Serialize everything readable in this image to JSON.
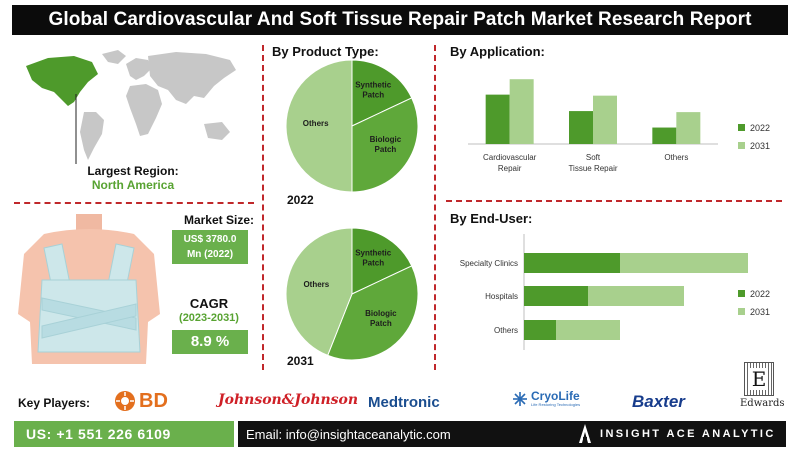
{
  "title": "Global Cardiovascular And Soft Tissue Repair Patch Market Research Report",
  "region": {
    "label": "Largest Region:",
    "value": "North America"
  },
  "market_size": {
    "label": "Market Size:",
    "value_line1": "US$ 3780.0",
    "value_line2": "Mn (2022)"
  },
  "cagr": {
    "label": "CAGR",
    "period": "(2023-2031)",
    "value": "8.9 %"
  },
  "product_type": {
    "heading": "By Product Type:",
    "year_top": "2022",
    "year_bottom": "2031"
  },
  "application": {
    "heading": "By Application:"
  },
  "end_user": {
    "heading": "By End-User:"
  },
  "key_players": {
    "label": "Key Players:",
    "logos": [
      "BD",
      "Johnson&Johnson",
      "Medtronic",
      "CryoLife",
      "Baxter",
      "Edwards"
    ],
    "cryolife_tag": "Life Restoring Technologies",
    "edwards_mark": "E"
  },
  "footer": {
    "phone": "US: +1 551 226 6109",
    "email": "Email: info@insightaceanalytic.com",
    "brand": "INSIGHT ACE ANALYTIC"
  },
  "colors": {
    "dark_green": "#4e9a2b",
    "light_green": "#a8d08d",
    "accent_red": "#c0282b",
    "brand_green": "#6ab04c"
  },
  "chart_data": [
    {
      "type": "pie",
      "title": "2022",
      "labels": [
        "Synthetic Patch",
        "Biologic Patch",
        "Others"
      ],
      "values": [
        18,
        32,
        50
      ]
    },
    {
      "type": "pie",
      "title": "2031",
      "labels": [
        "Synthetic Patch",
        "Biologic Patch",
        "Others"
      ],
      "values": [
        18,
        38,
        44
      ]
    },
    {
      "type": "bar",
      "orientation": "vertical",
      "categories": [
        "Cardiovascular Repair",
        "Soft Tissue Repair",
        "Others"
      ],
      "series": [
        {
          "name": "2022",
          "values": [
            4.8,
            3.2,
            1.6
          ]
        },
        {
          "name": "2031",
          "values": [
            6.3,
            4.7,
            3.1
          ]
        }
      ],
      "ylim": [
        0,
        7
      ]
    },
    {
      "type": "bar",
      "orientation": "horizontal",
      "stacked": true,
      "categories": [
        "Specialty Clinics",
        "Hospitals",
        "Others"
      ],
      "series": [
        {
          "name": "2022",
          "values": [
            60,
            40,
            20
          ]
        },
        {
          "name": "2031",
          "values": [
            80,
            60,
            40
          ]
        }
      ],
      "xlim": [
        0,
        160
      ]
    }
  ]
}
